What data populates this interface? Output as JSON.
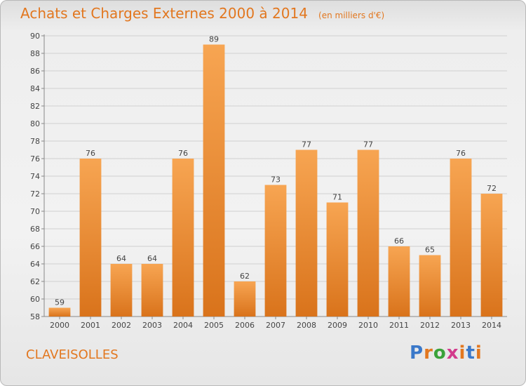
{
  "header": {
    "title": "Achats et Charges Externes 2000 à 2014",
    "unit": "(en milliers d'€)"
  },
  "commune": "CLAVEISOLLES",
  "logo": {
    "text": "Proxiti",
    "colors": [
      "#3a78c9",
      "#e2771f",
      "#3aa23a",
      "#d23b8c",
      "#e2771f",
      "#3a78c9",
      "#e2771f"
    ]
  },
  "colors": {
    "bar_light": "#f7a552",
    "bar_dark": "#d9731b",
    "accent": "#e2771f"
  },
  "chart_data": {
    "type": "bar",
    "title": "Achats et Charges Externes 2000 à 2014",
    "subtitle": "(en milliers d'€)",
    "categories": [
      "2000",
      "2001",
      "2002",
      "2003",
      "2004",
      "2005",
      "2006",
      "2007",
      "2008",
      "2009",
      "2010",
      "2011",
      "2012",
      "2013",
      "2014"
    ],
    "values": [
      59,
      76,
      64,
      64,
      76,
      89,
      62,
      73,
      77,
      71,
      77,
      66,
      65,
      76,
      72
    ],
    "ylim": [
      58,
      90
    ],
    "yticks": [
      58,
      60,
      62,
      64,
      66,
      68,
      70,
      72,
      74,
      76,
      78,
      80,
      82,
      84,
      86,
      88,
      90
    ],
    "grid": true,
    "legend": "none"
  }
}
